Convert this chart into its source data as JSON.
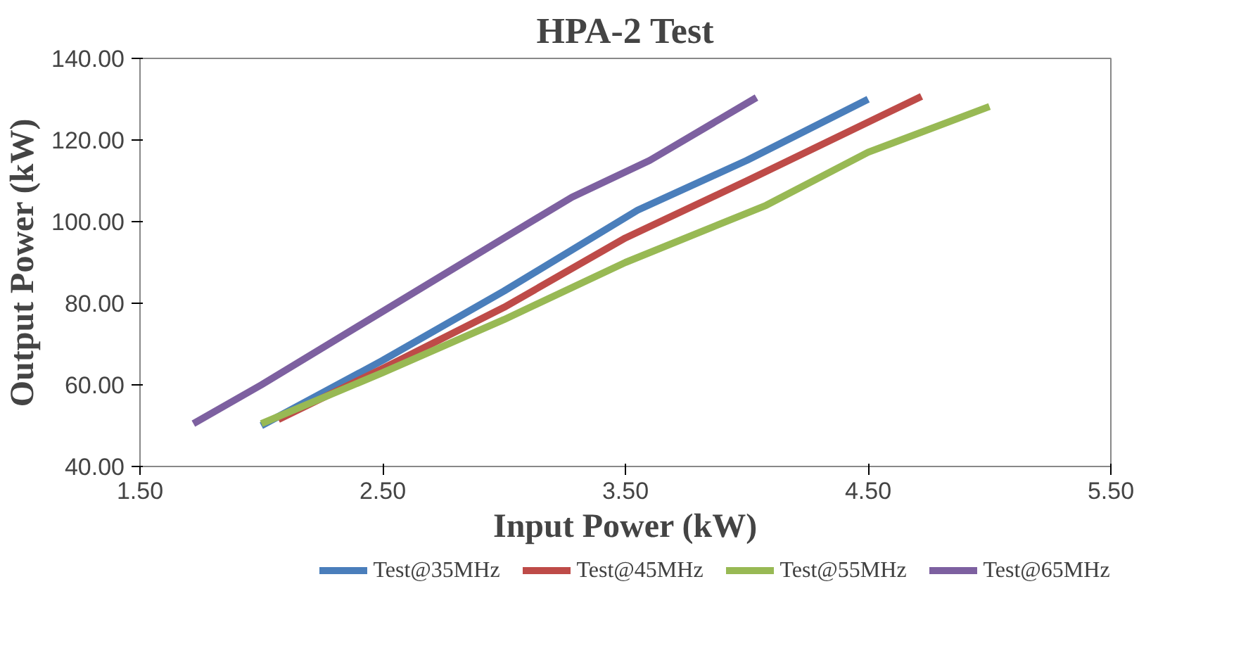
{
  "chart_data": {
    "type": "line",
    "title": "HPA-2 Test",
    "xlabel": "Input Power (kW)",
    "ylabel": "Output Power (kW)",
    "xlim": [
      1.5,
      5.5
    ],
    "ylim": [
      40,
      140
    ],
    "xticks": [
      {
        "value": 1.5,
        "label": "1.50"
      },
      {
        "value": 2.5,
        "label": "2.50"
      },
      {
        "value": 3.5,
        "label": "3.50"
      },
      {
        "value": 4.5,
        "label": "4.50"
      },
      {
        "value": 5.5,
        "label": "5.50"
      }
    ],
    "yticks": [
      {
        "value": 40,
        "label": "40.00"
      },
      {
        "value": 60,
        "label": "60.00"
      },
      {
        "value": 80,
        "label": "80.00"
      },
      {
        "value": 100,
        "label": "100.00"
      },
      {
        "value": 120,
        "label": "120.00"
      },
      {
        "value": 140,
        "label": "140.00"
      }
    ],
    "grid": false,
    "legend": "bottom",
    "marker": "none",
    "line_style": "solid",
    "series": [
      {
        "name": "Test@35MHz",
        "color": "#4a7ebb",
        "x": [
          2.0,
          2.5,
          3.0,
          3.55,
          4.0,
          4.5
        ],
        "values": [
          50,
          66,
          83,
          102.8,
          115,
          130
        ]
      },
      {
        "name": "Test@45MHz",
        "color": "#be4b48",
        "x": [
          2.07,
          2.5,
          3.0,
          3.5,
          4.0,
          4.72
        ],
        "values": [
          51.5,
          64,
          79,
          96,
          110,
          130.7
        ]
      },
      {
        "name": "Test@55MHz",
        "color": "#98b954",
        "x": [
          2.0,
          2.5,
          3.0,
          3.5,
          4.08,
          4.5,
          5.0
        ],
        "values": [
          50.5,
          63,
          76,
          90,
          104,
          117,
          128.2
        ]
      },
      {
        "name": "Test@65MHz",
        "color": "#7d60a0",
        "x": [
          1.72,
          2.0,
          2.5,
          3.0,
          3.28,
          3.6,
          4.04
        ],
        "values": [
          50.5,
          60,
          78,
          96,
          106,
          115,
          130.4
        ]
      }
    ]
  }
}
